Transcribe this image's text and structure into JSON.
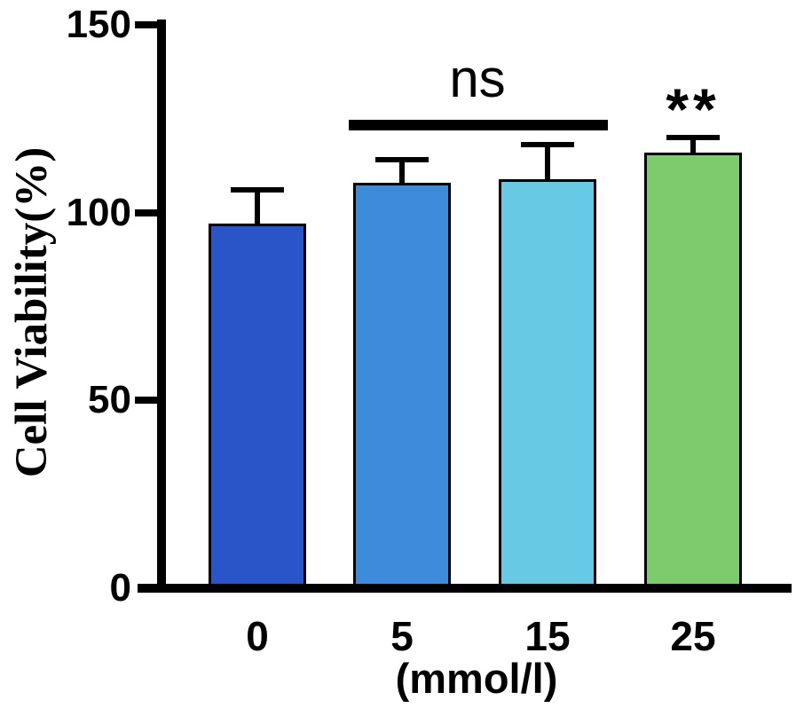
{
  "chart_data": {
    "type": "bar",
    "title": "",
    "ylabel": "Cell Viability(%)",
    "xlabel": "(mmol/l)",
    "categories": [
      "0",
      "5",
      "15",
      "25"
    ],
    "values": [
      97,
      108,
      109,
      116
    ],
    "errors_plus": [
      9,
      6,
      9,
      4
    ],
    "ylim": [
      0,
      150
    ],
    "yticks": [
      0,
      50,
      100,
      150
    ],
    "grid": false,
    "legend": null,
    "bar_colors": [
      "#2A55C9",
      "#3E8ADB",
      "#67C9E3",
      "#7CCC6E"
    ],
    "bar_edge_color": "#000000",
    "axis_color": "#000000",
    "annotations": [
      {
        "type": "bracket",
        "label": "ns",
        "from_category": "5",
        "to_category": "15"
      },
      {
        "type": "stars",
        "label": "**",
        "category": "25"
      }
    ]
  }
}
